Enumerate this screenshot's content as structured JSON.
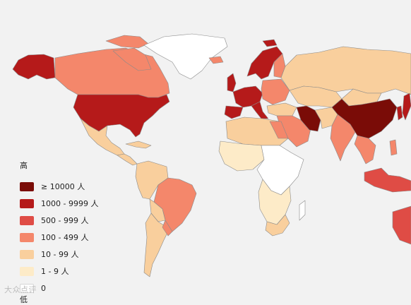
{
  "map": {
    "colors": {
      "ge10000": "#7a0c07",
      "r1000": "#b51a1a",
      "r500": "#df4c45",
      "r100": "#f4876b",
      "r10": "#f9cf9d",
      "r1": "#fdebc8",
      "r0": "#ffffff"
    }
  },
  "legend": {
    "title": "高",
    "bottom_label": "低",
    "items": [
      {
        "label": "≥ 10000 人",
        "color": "#7a0c07"
      },
      {
        "label": "1000 - 9999 人",
        "color": "#b51a1a"
      },
      {
        "label": "500 - 999 人",
        "color": "#df4c45"
      },
      {
        "label": "100 - 499 人",
        "color": "#f4876b"
      },
      {
        "label": "10 - 99 人",
        "color": "#f9cf9d"
      },
      {
        "label": "1 - 9 人",
        "color": "#fdebc8"
      },
      {
        "label": "0",
        "color": "#ffffff"
      }
    ]
  },
  "watermark": "大众点评"
}
